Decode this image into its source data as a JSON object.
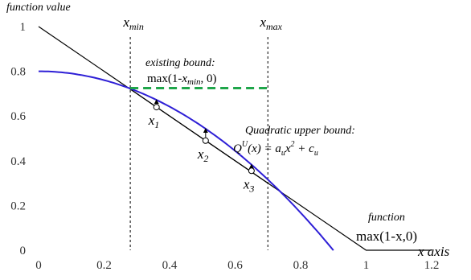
{
  "chart_data": {
    "type": "line",
    "ylabel": "function value",
    "xlabel": "x axis",
    "xlim": [
      0,
      1.2
    ],
    "ylim": [
      0,
      1
    ],
    "x_ticks": [
      "0",
      "0.2",
      "0.4",
      "0.6",
      "0.8",
      "1",
      "1.2"
    ],
    "y_ticks": [
      "0",
      "0.2",
      "0.4",
      "0.6",
      "0.8",
      "1"
    ],
    "grid": false,
    "colors": {
      "function": "#000000",
      "quadratic": "#2e1fd6",
      "bound": "#1fa64a",
      "guide": "#000000"
    },
    "vlines": [
      {
        "x": 0.28,
        "label": "x",
        "sub": "min"
      },
      {
        "x": 0.7,
        "label": "x",
        "sub": "max"
      }
    ],
    "series": [
      {
        "key": "function",
        "x": [
          0,
          1,
          1.2
        ],
        "y": [
          1,
          0,
          0
        ]
      },
      {
        "key": "quadratic",
        "a": -0.988,
        "c": 0.8,
        "x_range": [
          0,
          0.9
        ]
      },
      {
        "key": "existing_bound",
        "x": [
          0.28,
          0.7
        ],
        "y": [
          0.725,
          0.725
        ]
      },
      {
        "key": "inner_segment",
        "x": [
          0.28,
          0.7
        ],
        "y": [
          0.72,
          0.3
        ]
      }
    ],
    "points": [
      {
        "label": "x",
        "sub": "1",
        "x": 0.36,
        "y": 0.64
      },
      {
        "label": "x",
        "sub": "2",
        "x": 0.51,
        "y": 0.49
      },
      {
        "label": "x",
        "sub": "3",
        "x": 0.65,
        "y": 0.355
      }
    ],
    "annotations": {
      "existing_title": "existing bound:",
      "existing_formula_prefix": "max(1-",
      "existing_formula_var": "x",
      "existing_formula_sub": "min",
      "existing_formula_suffix": ", 0)",
      "quad_title": "Quadratic upper bound:",
      "quad_formula": "Q",
      "quad_formula_sup": "U",
      "quad_formula_rest": "(x) = a",
      "quad_formula_sub1": "u",
      "quad_formula_x2": "x",
      "quad_formula_sup2": "2",
      "quad_formula_plus": " + c",
      "quad_formula_sub2": "u",
      "function_title": "function",
      "function_formula": "max(1-x,0)"
    }
  }
}
